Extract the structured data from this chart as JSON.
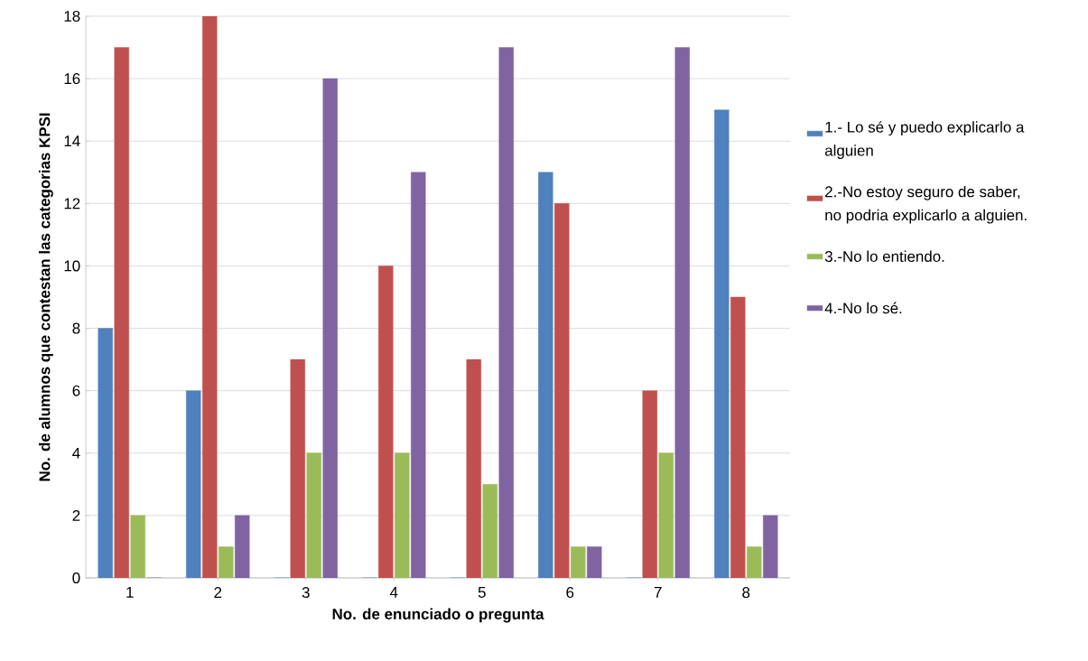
{
  "chart_data": {
    "type": "bar",
    "xlabel": "No. de enunciado o pregunta",
    "ylabel": "No. de  alumnos que contestan las categorias KPSI",
    "categories": [
      "1",
      "2",
      "3",
      "4",
      "5",
      "6",
      "7",
      "8"
    ],
    "series": [
      {
        "name": "1.- Lo sé  y puedo explicarlo a alguien",
        "color": "#4f81bd",
        "values": [
          8,
          6,
          0,
          0,
          0,
          13,
          0,
          15
        ]
      },
      {
        "name": "2.-No estoy seguro de saber, no podria explicarlo a alguien.",
        "color": "#c0504d",
        "values": [
          17,
          18,
          7,
          10,
          7,
          12,
          6,
          9
        ]
      },
      {
        "name": "3.-No lo entiendo.",
        "color": "#9bbb59",
        "values": [
          2,
          1,
          4,
          4,
          3,
          1,
          4,
          1
        ]
      },
      {
        "name": "4.-No lo sé.",
        "color": "#8064a2",
        "values": [
          0,
          2,
          16,
          13,
          17,
          1,
          17,
          2
        ]
      }
    ],
    "ylim": [
      0,
      18
    ],
    "yticks": [
      0,
      2,
      4,
      6,
      8,
      10,
      12,
      14,
      16,
      18
    ],
    "grid": "y",
    "legend": "right"
  }
}
